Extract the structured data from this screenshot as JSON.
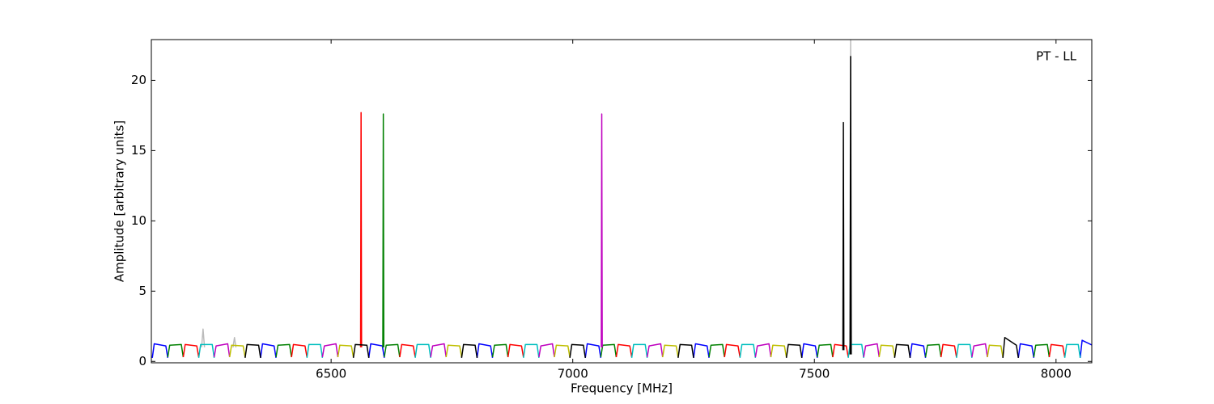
{
  "chart_data": {
    "type": "line",
    "annotation": "PT - LL",
    "x_label": "Frequency [MHz]",
    "y_label": "Amplitude [arbitrary units]",
    "xlim": [
      6128,
      8074
    ],
    "ylim": [
      -0.1,
      22.9
    ],
    "xticks": [
      6500,
      7000,
      7500,
      8000
    ],
    "yticks": [
      0,
      5,
      10,
      15,
      20
    ],
    "grid": false,
    "series": [
      {
        "color": "#bbbbbb",
        "x": [
          6232,
          6235,
          6238,
          null,
          6297,
          6300,
          6303,
          null,
          7573,
          7575,
          7577
        ],
        "values": [
          1.0,
          2.3,
          1.0,
          null,
          1.0,
          1.7,
          1.0,
          null,
          0.5,
          22.9,
          0.5
        ]
      },
      {
        "color": "#0000ff",
        "x": [
          6130,
          6134,
          6158,
          6162,
          null,
          6354,
          6358,
          6382,
          6386,
          null,
          6578,
          6582,
          6606,
          6610,
          null,
          6802,
          6806,
          6830,
          6834,
          null,
          7026,
          7030,
          7054,
          7058,
          null,
          7250,
          7254,
          7278,
          7282,
          null,
          7474,
          7478,
          7502,
          7506,
          null,
          7698,
          7702,
          7726,
          7730,
          null,
          7922,
          7926,
          7950,
          7954,
          null,
          8050,
          8054,
          8078,
          8082
        ],
        "values": [
          0.25,
          1.25,
          1.1,
          0.25,
          null,
          0.25,
          1.25,
          1.1,
          0.25,
          null,
          0.25,
          1.25,
          1.1,
          0.25,
          null,
          0.25,
          1.25,
          1.1,
          0.25,
          null,
          0.25,
          1.25,
          1.1,
          0.25,
          null,
          0.25,
          1.25,
          1.1,
          0.25,
          null,
          0.25,
          1.25,
          1.1,
          0.25,
          null,
          0.25,
          1.25,
          1.1,
          0.25,
          null,
          0.25,
          1.25,
          1.1,
          0.25,
          null,
          0.25,
          1.5,
          1.1,
          0.25
        ]
      },
      {
        "color": "#008000",
        "x": [
          6162,
          6166,
          6190,
          6194,
          null,
          6386,
          6390,
          6414,
          6418,
          null,
          6610,
          6614,
          6638,
          6642,
          null,
          6834,
          6838,
          6862,
          6866,
          null,
          7058,
          7062,
          7086,
          7090,
          null,
          7282,
          7286,
          7310,
          7314,
          null,
          7506,
          7510,
          7534,
          7538,
          null,
          7730,
          7734,
          7758,
          7762,
          null,
          7954,
          7958,
          7982,
          7986,
          null,
          6607,
          6608,
          6609
        ],
        "values": [
          0.3,
          1.15,
          1.2,
          0.3,
          null,
          0.3,
          1.15,
          1.2,
          0.3,
          null,
          0.3,
          1.15,
          1.2,
          0.3,
          null,
          0.3,
          1.15,
          1.2,
          0.3,
          null,
          0.3,
          1.15,
          1.2,
          0.3,
          null,
          0.3,
          1.15,
          1.2,
          0.3,
          null,
          0.3,
          1.15,
          1.2,
          0.3,
          null,
          0.3,
          1.15,
          1.2,
          0.3,
          null,
          0.3,
          1.15,
          1.2,
          0.3,
          null,
          1.0,
          17.6,
          1.0
        ]
      },
      {
        "color": "#ff0000",
        "x": [
          6194,
          6198,
          6222,
          6226,
          null,
          6418,
          6422,
          6446,
          6450,
          null,
          6642,
          6646,
          6670,
          6674,
          null,
          6866,
          6870,
          6894,
          6898,
          null,
          7090,
          7094,
          7118,
          7122,
          null,
          7314,
          7318,
          7342,
          7346,
          null,
          7538,
          7542,
          7566,
          7570,
          null,
          7762,
          7766,
          7790,
          7794,
          null,
          7986,
          7990,
          8014,
          8018,
          null,
          6561,
          6562,
          6563
        ],
        "values": [
          0.3,
          1.2,
          1.1,
          0.3,
          null,
          0.3,
          1.2,
          1.1,
          0.3,
          null,
          0.3,
          1.2,
          1.1,
          0.3,
          null,
          0.3,
          1.2,
          1.1,
          0.3,
          null,
          0.3,
          1.2,
          1.1,
          0.3,
          null,
          0.3,
          1.2,
          1.1,
          0.3,
          null,
          0.3,
          1.2,
          1.1,
          0.3,
          null,
          0.3,
          1.2,
          1.1,
          0.3,
          null,
          0.3,
          1.2,
          1.1,
          0.3,
          null,
          1.0,
          17.7,
          1.0
        ]
      },
      {
        "color": "#00bfbf",
        "x": [
          6226,
          6230,
          6254,
          6258,
          null,
          6450,
          6454,
          6478,
          6482,
          null,
          6674,
          6678,
          6702,
          6706,
          null,
          6898,
          6902,
          6926,
          6930,
          null,
          7122,
          7126,
          7150,
          7154,
          null,
          7346,
          7350,
          7374,
          7378,
          null,
          7570,
          7574,
          7598,
          7602,
          null,
          7794,
          7798,
          7822,
          7826,
          null,
          8018,
          8022,
          8046,
          8050
        ],
        "values": [
          0.25,
          1.2,
          1.2,
          0.25,
          null,
          0.25,
          1.2,
          1.2,
          0.25,
          null,
          0.25,
          1.2,
          1.2,
          0.25,
          null,
          0.25,
          1.2,
          1.2,
          0.25,
          null,
          0.25,
          1.2,
          1.2,
          0.25,
          null,
          0.25,
          1.2,
          1.2,
          0.25,
          null,
          0.25,
          1.2,
          1.2,
          0.25,
          null,
          0.25,
          1.2,
          1.2,
          0.25,
          null,
          0.25,
          1.2,
          1.2,
          0.25
        ]
      },
      {
        "color": "#bf00bf",
        "x": [
          6258,
          6262,
          6286,
          6290,
          null,
          6482,
          6486,
          6510,
          6514,
          null,
          6706,
          6710,
          6734,
          6738,
          null,
          6930,
          6934,
          6958,
          6962,
          null,
          7154,
          7158,
          7182,
          7186,
          null,
          7378,
          7382,
          7406,
          7410,
          null,
          7602,
          7606,
          7630,
          7634,
          null,
          7826,
          7830,
          7854,
          7858,
          null,
          7059,
          7060,
          7061
        ],
        "values": [
          0.3,
          1.1,
          1.25,
          0.3,
          null,
          0.3,
          1.1,
          1.25,
          0.3,
          null,
          0.3,
          1.1,
          1.25,
          0.3,
          null,
          0.3,
          1.1,
          1.25,
          0.3,
          null,
          0.3,
          1.1,
          1.25,
          0.3,
          null,
          0.3,
          1.1,
          1.25,
          0.3,
          null,
          0.3,
          1.1,
          1.25,
          0.3,
          null,
          0.3,
          1.1,
          1.25,
          0.3,
          null,
          1.0,
          17.6,
          1.0
        ]
      },
      {
        "color": "#bfbf00",
        "x": [
          6290,
          6294,
          6318,
          6322,
          null,
          6514,
          6518,
          6542,
          6546,
          null,
          6738,
          6742,
          6766,
          6770,
          null,
          6962,
          6966,
          6990,
          6994,
          null,
          7186,
          7190,
          7214,
          7218,
          null,
          7410,
          7414,
          7438,
          7442,
          null,
          7634,
          7638,
          7662,
          7666,
          null,
          7858,
          7862,
          7886,
          7890
        ],
        "values": [
          0.3,
          1.15,
          1.1,
          0.3,
          null,
          0.3,
          1.15,
          1.1,
          0.3,
          null,
          0.3,
          1.15,
          1.1,
          0.3,
          null,
          0.3,
          1.15,
          1.1,
          0.3,
          null,
          0.3,
          1.15,
          1.1,
          0.3,
          null,
          0.3,
          1.15,
          1.1,
          0.3,
          null,
          0.3,
          1.15,
          1.1,
          0.3,
          null,
          0.3,
          1.15,
          1.1,
          0.3
        ]
      },
      {
        "color": "#000000",
        "x": [
          6322,
          6326,
          6350,
          6354,
          null,
          6546,
          6550,
          6574,
          6578,
          null,
          6770,
          6774,
          6798,
          6802,
          null,
          6994,
          6998,
          7022,
          7026,
          null,
          7218,
          7222,
          7246,
          7250,
          null,
          7442,
          7446,
          7470,
          7474,
          null,
          7666,
          7670,
          7694,
          7698,
          null,
          7890,
          7894,
          7918,
          7922,
          null,
          7559,
          7560,
          7561,
          null,
          7574,
          7575,
          7576
        ],
        "values": [
          0.25,
          1.2,
          1.15,
          0.25,
          null,
          0.25,
          1.2,
          1.15,
          0.25,
          null,
          0.25,
          1.2,
          1.15,
          0.25,
          null,
          0.25,
          1.2,
          1.15,
          0.25,
          null,
          0.25,
          1.2,
          1.15,
          0.25,
          null,
          0.25,
          1.2,
          1.15,
          0.25,
          null,
          0.25,
          1.2,
          1.15,
          0.25,
          null,
          0.25,
          1.7,
          1.15,
          0.25,
          null,
          0.8,
          17.0,
          0.8,
          null,
          0.5,
          21.7,
          0.5
        ]
      }
    ]
  }
}
